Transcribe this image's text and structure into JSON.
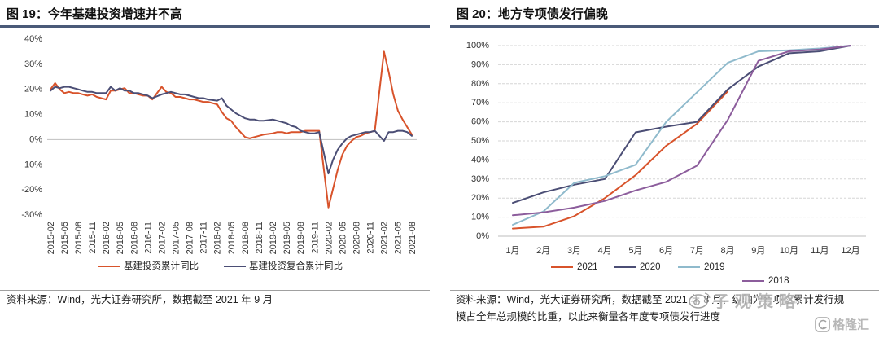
{
  "panels": {
    "left": {
      "note": "资料来源：Wind，光大证券研究所，数据截至 2021 年 9 月"
    },
    "right": {
      "note_lines": [
        "资料来源：Wind，光大证券研究所，数据截至 2021 年 8 月，纵轴为专项债累计发行规",
        "模占全年总规模的比重，以此来衡量各年度专项债发行进度"
      ]
    }
  },
  "watermark": {
    "weibo_icon": "weibo-icon",
    "weibo_text": "子观策略",
    "brand_icon": "gelonghui-logo-icon",
    "brand_text": "格隆汇"
  },
  "chart_data": [
    {
      "type": "line",
      "title": "图 19：今年基建投资增速并不高",
      "grid": false,
      "legend": "bottom",
      "ylim": [
        -30,
        40
      ],
      "yticks": [
        "40%",
        "30%",
        "20%",
        "10%",
        "0%",
        "-10%",
        "-20%",
        "-30%"
      ],
      "ytick_values": [
        40,
        30,
        20,
        10,
        0,
        -10,
        -20,
        -30
      ],
      "xticks": [
        "2015-02",
        "2015-05",
        "2015-08",
        "2015-11",
        "2016-02",
        "2016-05",
        "2016-08",
        "2016-11",
        "2017-02",
        "2017-05",
        "2017-08",
        "2017-11",
        "2018-02",
        "2018-05",
        "2018-08",
        "2018-11",
        "2019-02",
        "2019-05",
        "2019-08",
        "2019-11",
        "2020-02",
        "2020-05",
        "2020-08",
        "2020-11",
        "2021-02",
        "2021-05",
        "2021-08"
      ],
      "x": [
        "2015-02",
        "2015-03",
        "2015-04",
        "2015-05",
        "2015-06",
        "2015-07",
        "2015-08",
        "2015-09",
        "2015-10",
        "2015-11",
        "2015-12",
        "2016-02",
        "2016-03",
        "2016-04",
        "2016-05",
        "2016-06",
        "2016-07",
        "2016-08",
        "2016-09",
        "2016-10",
        "2016-11",
        "2016-12",
        "2017-02",
        "2017-03",
        "2017-04",
        "2017-05",
        "2017-06",
        "2017-07",
        "2017-08",
        "2017-09",
        "2017-10",
        "2017-11",
        "2017-12",
        "2018-02",
        "2018-03",
        "2018-04",
        "2018-05",
        "2018-06",
        "2018-07",
        "2018-08",
        "2018-09",
        "2018-10",
        "2018-11",
        "2018-12",
        "2019-02",
        "2019-03",
        "2019-04",
        "2019-05",
        "2019-06",
        "2019-07",
        "2019-08",
        "2019-09",
        "2019-10",
        "2019-11",
        "2019-12",
        "2020-02",
        "2020-03",
        "2020-04",
        "2020-05",
        "2020-06",
        "2020-07",
        "2020-08",
        "2020-09",
        "2020-10",
        "2020-11",
        "2020-12",
        "2021-02",
        "2021-03",
        "2021-04",
        "2021-05",
        "2021-06",
        "2021-07",
        "2021-08"
      ],
      "series": [
        {
          "name": "基建投资累计同比",
          "color": "#d8532b",
          "values": [
            20,
            22.5,
            20,
            18.5,
            19,
            18.5,
            18.5,
            18,
            17.5,
            18,
            17,
            16,
            19.5,
            19.5,
            20,
            20.5,
            18.5,
            18.5,
            18,
            17.5,
            17.5,
            16,
            21,
            19,
            18.5,
            17,
            17,
            16.5,
            16,
            16,
            15.5,
            15,
            15,
            14,
            11,
            8.5,
            7.5,
            5,
            3,
            1,
            0.5,
            1,
            1.5,
            2,
            2.5,
            3,
            3,
            2.5,
            3,
            3,
            3,
            3.5,
            3.5,
            3.5,
            3.5,
            -27,
            -19.5,
            -12,
            -6,
            -2.5,
            -0.5,
            1,
            1.5,
            2.5,
            3,
            3.5,
            35,
            27,
            18,
            11.5,
            8,
            5,
            2
          ]
        },
        {
          "name": "基建投资复合累计同比",
          "color": "#4b4e75",
          "values": [
            19.5,
            21,
            20.5,
            21,
            21,
            20.5,
            20,
            19.5,
            19,
            19,
            18.5,
            18.5,
            21,
            19.5,
            20.5,
            19.5,
            19.5,
            18.5,
            18.5,
            18,
            17.5,
            16.5,
            18,
            18.5,
            19,
            18.5,
            18,
            18,
            17.5,
            17,
            16.5,
            16.5,
            16,
            15.5,
            16.5,
            13.5,
            12,
            10.5,
            9.5,
            8.5,
            8,
            8,
            7.5,
            7.5,
            8,
            7.5,
            7,
            6.5,
            5.5,
            5,
            3.5,
            3,
            2.5,
            2.5,
            3,
            -13.5,
            -8,
            -4,
            -1.5,
            0.5,
            1.5,
            2,
            2.5,
            3,
            3,
            3.5,
            -0.5,
            3,
            3,
            3.5,
            3.5,
            3,
            1.5
          ]
        }
      ]
    },
    {
      "type": "line",
      "title": "图 20：地方专项债发行偏晚",
      "grid": true,
      "legend": "bottom",
      "ylim": [
        0,
        100
      ],
      "yticks": [
        "0%",
        "10%",
        "20%",
        "30%",
        "40%",
        "50%",
        "60%",
        "70%",
        "80%",
        "90%",
        "100%"
      ],
      "ytick_values": [
        0,
        10,
        20,
        30,
        40,
        50,
        60,
        70,
        80,
        90,
        100
      ],
      "categories": [
        "1月",
        "2月",
        "3月",
        "4月",
        "5月",
        "6月",
        "7月",
        "8月",
        "9月",
        "10月",
        "11月",
        "12月"
      ],
      "series": [
        {
          "name": "2021",
          "color": "#d8532b",
          "values": [
            4,
            5,
            10.5,
            20,
            32,
            47.5,
            59,
            76,
            null,
            null,
            null,
            null
          ]
        },
        {
          "name": "2020",
          "color": "#4b4e75",
          "values": [
            17.5,
            23,
            27,
            30,
            54.5,
            57.5,
            60,
            77,
            89,
            96,
            97,
            100
          ]
        },
        {
          "name": "2019",
          "color": "#8fbacc",
          "values": [
            6,
            13,
            28,
            31.5,
            37.5,
            60,
            75.5,
            91,
            97,
            97.5,
            98.5,
            100
          ]
        },
        {
          "name": "2018",
          "color": "#8c5d9c",
          "values": [
            11,
            12.5,
            15,
            18.5,
            24,
            28.5,
            37,
            61,
            92,
            97,
            98,
            100
          ]
        }
      ]
    }
  ]
}
